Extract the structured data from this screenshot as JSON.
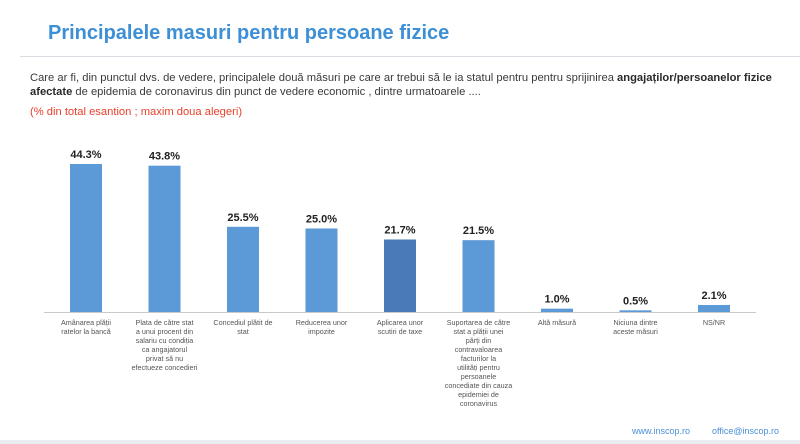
{
  "header": {
    "title": "Principalele masuri pentru persoane fizice"
  },
  "question": {
    "part1": "Care ar fi, din punctul dvs. de vedere, principalele două măsuri pe care ar trebui să le ia statul pentru pentru sprijinirea",
    "bold": "angajaților/persoanelor fizice afectate",
    "part2": "de epidemia de coronavirus din punct de vedere economic , dintre urmatoarele ....",
    "note": "(% din total esantion ; maxim doua alegeri)"
  },
  "chart_data": {
    "type": "bar",
    "categories": [
      "Amânarea plății ratelor la bancă",
      "Plata de către stat a unui procent din salariu cu condiția ca angajatorul privat să nu efectueze concedieri",
      "Concediul plătit de stat",
      "Reducerea unor impozite",
      "Aplicarea unor scutiri de taxe",
      "Suportarea de către stat a plății unei părți din contravaloarea facturilor la utilități pentru persoanele concediate din cauza epidemiei de coronavirus",
      "Altă măsură",
      "Niciuna dintre aceste măsuri",
      "NS/NR"
    ],
    "values": [
      44.3,
      43.8,
      25.5,
      25.0,
      21.7,
      21.5,
      1.0,
      0.5,
      2.1
    ],
    "value_labels": [
      "44.3%",
      "43.8%",
      "25.5%",
      "25.0%",
      "21.7%",
      "21.5%",
      "1.0%",
      "0.5%",
      "2.1%"
    ],
    "ylim": [
      0,
      50
    ],
    "grid": false,
    "legend": "none",
    "colors": {
      "bar": "#5b9ad6",
      "bar_highlight": "#4a7ab8"
    },
    "highlight_index": 4
  },
  "footer": {
    "website": "www.inscop.ro",
    "email": "office@inscop.ro"
  }
}
